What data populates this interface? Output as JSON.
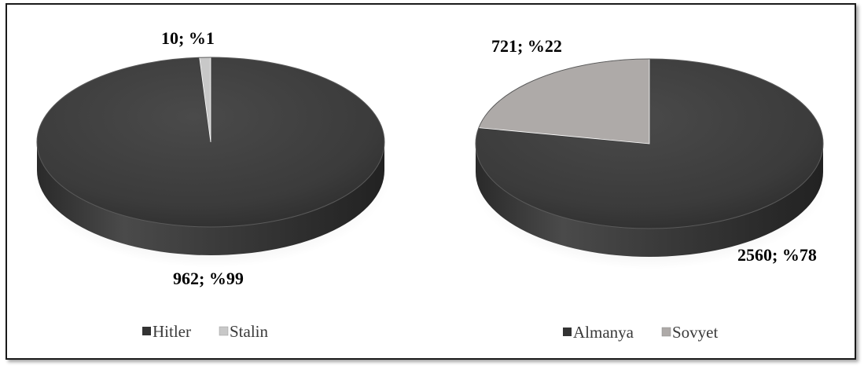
{
  "chart_data": [
    {
      "type": "pie",
      "categories": [
        "Hitler",
        "Stalin"
      ],
      "values": [
        962,
        10
      ],
      "percent_labels": [
        "962; %99",
        "10; %1"
      ],
      "colors": [
        "#3c3c3c",
        "#c8c8c8"
      ],
      "legend": [
        "Hitler",
        "Stalin"
      ],
      "legend_placement": "bottom",
      "style": "3d"
    },
    {
      "type": "pie",
      "categories": [
        "Almanya",
        "Sovyet"
      ],
      "values": [
        2560,
        721
      ],
      "percent_labels": [
        "2560; %78",
        "721; %22"
      ],
      "colors": [
        "#3c3c3c",
        "#aeaaa8"
      ],
      "legend": [
        "Almanya",
        "Sovyet"
      ],
      "legend_placement": "bottom",
      "style": "3d"
    }
  ]
}
